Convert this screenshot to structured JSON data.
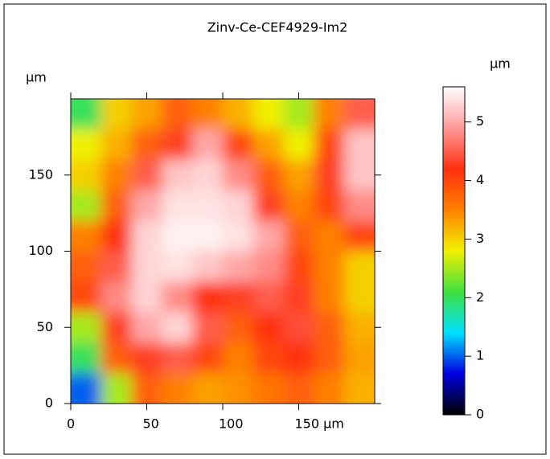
{
  "chart_data": {
    "type": "heatmap",
    "title": "Zinv-Ce-CEF4929-Im2",
    "ylabel": "µm",
    "zlabel": "µm",
    "xlim": [
      0,
      200
    ],
    "ylim": [
      0,
      200
    ],
    "zlim": [
      0,
      5.6
    ],
    "xticks": [
      0,
      50,
      100,
      {
        "value": 150,
        "label": "150 µm"
      }
    ],
    "yticks": [
      0,
      50,
      100,
      150
    ],
    "zticks": [
      0,
      1,
      2,
      3,
      4,
      5
    ],
    "colorscale": [
      "#000000",
      "#0000e0",
      "#00e0ff",
      "#40e040",
      "#f0f000",
      "#ff8000",
      "#ff3010",
      "#ff9a9a",
      "#ffffff"
    ],
    "z": [
      [
        2.0,
        3.0,
        3.3,
        3.8,
        3.5,
        3.2,
        2.8,
        2.5,
        3.5,
        4.5
      ],
      [
        2.8,
        3.2,
        3.8,
        4.3,
        5.0,
        4.0,
        3.3,
        2.8,
        4.0,
        5.2
      ],
      [
        3.0,
        3.5,
        4.5,
        5.2,
        5.3,
        4.8,
        3.8,
        3.3,
        4.3,
        5.2
      ],
      [
        2.5,
        3.8,
        5.0,
        5.4,
        5.4,
        5.3,
        4.3,
        3.5,
        4.0,
        4.8
      ],
      [
        3.5,
        4.2,
        5.3,
        5.5,
        5.5,
        5.4,
        5.0,
        3.8,
        3.5,
        4.0
      ],
      [
        3.8,
        4.5,
        5.3,
        5.4,
        5.2,
        5.0,
        4.8,
        4.0,
        3.5,
        3.0
      ],
      [
        4.0,
        4.8,
        5.3,
        4.8,
        4.2,
        4.3,
        4.5,
        4.3,
        3.5,
        3.0
      ],
      [
        2.5,
        4.3,
        5.0,
        5.3,
        4.5,
        3.8,
        4.2,
        4.4,
        3.8,
        3.2
      ],
      [
        2.0,
        3.8,
        4.3,
        4.5,
        4.0,
        3.5,
        4.0,
        4.2,
        3.8,
        3.3
      ],
      [
        1.0,
        2.5,
        3.8,
        3.5,
        3.3,
        3.4,
        3.6,
        3.8,
        3.5,
        3.2
      ]
    ]
  }
}
